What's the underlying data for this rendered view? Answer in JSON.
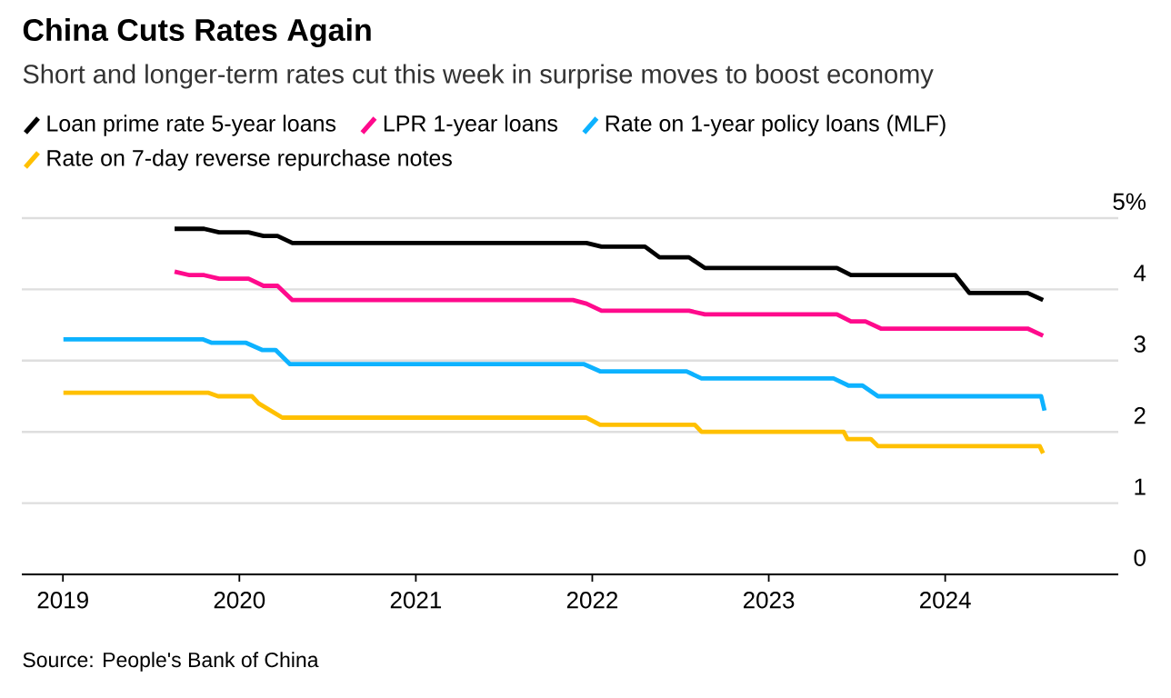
{
  "chart_data": {
    "type": "line",
    "title": "China Cuts Rates Again",
    "subtitle": "Short and longer-term rates cut this week in surprise moves to boost economy",
    "xlim": [
      "2018-10-08",
      "2024-12-25"
    ],
    "xticks": [
      {
        "value": "2019-01-01",
        "label": "2019"
      },
      {
        "value": "2020-01-01",
        "label": "2020"
      },
      {
        "value": "2021-01-01",
        "label": "2021"
      },
      {
        "value": "2022-01-01",
        "label": "2022"
      },
      {
        "value": "2023-01-01",
        "label": "2023"
      },
      {
        "value": "2024-01-01",
        "label": "2024"
      }
    ],
    "ylim": [
      0,
      5
    ],
    "yticks": [
      0,
      1,
      2,
      3,
      4,
      {
        "value": 5,
        "label": "5%"
      }
    ],
    "grid": "y",
    "legend": "top",
    "series": [
      {
        "name": "Loan prime rate 5-year loans",
        "color": "#000000",
        "x": [
          "2019-08-20",
          "2019-10-20",
          "2019-11-20",
          "2020-01-20",
          "2020-02-20",
          "2020-03-20",
          "2020-04-20",
          "2021-12-20",
          "2022-01-20",
          "2022-04-20",
          "2022-05-20",
          "2022-07-20",
          "2022-08-22",
          "2023-05-22",
          "2023-06-20",
          "2024-01-22",
          "2024-02-20",
          "2024-06-20",
          "2024-07-22"
        ],
        "values": [
          4.85,
          4.85,
          4.8,
          4.8,
          4.75,
          4.75,
          4.65,
          4.65,
          4.6,
          4.6,
          4.45,
          4.45,
          4.3,
          4.3,
          4.2,
          4.2,
          3.95,
          3.95,
          3.85
        ]
      },
      {
        "name": "LPR 1-year loans",
        "color": "#ff0a8c",
        "x": [
          "2019-08-20",
          "2019-09-20",
          "2019-10-20",
          "2019-11-20",
          "2020-01-20",
          "2020-02-20",
          "2020-03-20",
          "2020-04-20",
          "2021-11-22",
          "2021-12-20",
          "2022-01-20",
          "2022-07-20",
          "2022-08-22",
          "2023-05-22",
          "2023-06-20",
          "2023-07-20",
          "2023-08-21",
          "2024-06-20",
          "2024-07-22"
        ],
        "values": [
          4.25,
          4.2,
          4.2,
          4.15,
          4.15,
          4.05,
          4.05,
          3.85,
          3.85,
          3.8,
          3.7,
          3.7,
          3.65,
          3.65,
          3.55,
          3.55,
          3.45,
          3.45,
          3.35
        ]
      },
      {
        "name": "Rate on 1-year policy loans (MLF)",
        "color": "#0db2ff",
        "x": [
          "2019-01-02",
          "2019-10-17",
          "2019-11-05",
          "2020-01-15",
          "2020-02-17",
          "2020-03-16",
          "2020-04-15",
          "2021-12-15",
          "2022-01-17",
          "2022-07-15",
          "2022-08-15",
          "2023-05-15",
          "2023-06-15",
          "2023-07-14",
          "2023-08-15",
          "2024-07-18",
          "2024-07-25"
        ],
        "values": [
          3.3,
          3.3,
          3.25,
          3.25,
          3.15,
          3.15,
          2.95,
          2.95,
          2.85,
          2.85,
          2.75,
          2.75,
          2.65,
          2.65,
          2.5,
          2.5,
          2.3
        ]
      },
      {
        "name": "Rate on 7-day reverse repurchase notes",
        "color": "#ffc000",
        "x": [
          "2019-01-02",
          "2019-10-28",
          "2019-11-18",
          "2020-01-27",
          "2020-02-10",
          "2020-03-30",
          "2021-12-20",
          "2022-01-17",
          "2022-08-01",
          "2022-08-15",
          "2023-06-05",
          "2023-06-13",
          "2023-07-31",
          "2023-08-15",
          "2024-07-15",
          "2024-07-22"
        ],
        "values": [
          2.55,
          2.55,
          2.5,
          2.5,
          2.4,
          2.2,
          2.2,
          2.1,
          2.1,
          2.0,
          2.0,
          1.9,
          1.9,
          1.8,
          1.8,
          1.7
        ]
      }
    ],
    "annotations": [
      "Source: People's Bank of China"
    ]
  }
}
